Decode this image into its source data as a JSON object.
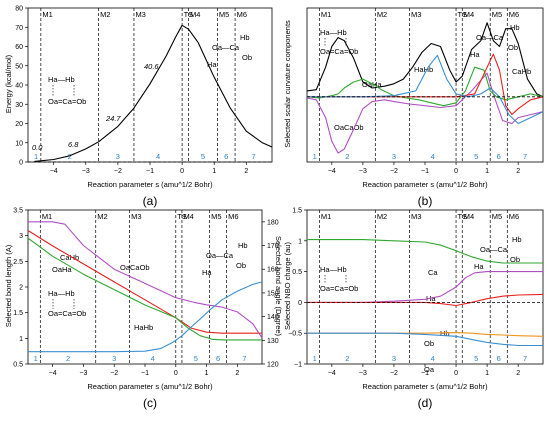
{
  "panels": [
    {
      "label": "(a)",
      "ylabel": "Energy (kcal/mol)",
      "xlabel": "Reaction parameter s (amu^1/2 Bohr)",
      "markers": [
        "M1",
        "M2",
        "M3",
        "TS",
        "M4",
        "M5",
        "M6"
      ],
      "marker_s": [
        -4.4,
        -2.6,
        -1.5,
        0.0,
        0.2,
        1.1,
        1.65
      ],
      "regions": [
        "1",
        "2",
        "3",
        "4",
        "5",
        "6",
        "7"
      ],
      "annotations": [
        "0.0",
        "6.8",
        "24.7",
        "40.6"
      ],
      "structure_left": {
        "top": "Ha—Hb",
        "bottom": "Oa=Ca=Ob"
      },
      "structure_right": {
        "hb": "Hb",
        "ha": "Ha",
        "chain": "Oa—Ca",
        "ob": "Ob"
      }
    },
    {
      "label": "(b)",
      "ylabel": "Selected scalar curvature components",
      "xlabel": "Reaction parameter s (amu^1/2 Bohr)",
      "markers": [
        "M1",
        "M2",
        "M3",
        "TS",
        "M4",
        "M5",
        "M6"
      ],
      "regions": [
        "1",
        "2",
        "3",
        "4",
        "5",
        "6",
        "7"
      ],
      "annotations": [
        "OaHa",
        "OaCaOb",
        "HaHb",
        "CaHb"
      ],
      "structure_left": {
        "top": "Ha—Hb",
        "bottom": "Oa=Ca=Ob"
      },
      "structure_right": {
        "hb": "Hb",
        "ha": "Ha",
        "chain": "Oa—Ca",
        "ob": "Ob"
      }
    },
    {
      "label": "(c)",
      "ylabel": "Selected bond length (A)",
      "ylabel2": "Selected bond angle (Degree)",
      "xlabel": "Reaction parameter s (amu^1/2 Bohr)",
      "markers": [
        "M1",
        "M2",
        "M3",
        "TS",
        "M4",
        "M5",
        "M6"
      ],
      "regions": [
        "1",
        "2",
        "3",
        "4",
        "5",
        "6",
        "7"
      ],
      "annotations": [
        "CaHb",
        "OaHa",
        "OaCaOb",
        "HaHb"
      ],
      "structure_left": {
        "top": "Ha—Hb",
        "bottom": "Oa=Ca=Ob"
      },
      "structure_right": {
        "hb": "Hb",
        "ha": "Ha",
        "chain": "Oa—Ca",
        "ob": "Ob"
      }
    },
    {
      "label": "(d)",
      "ylabel": "Selected NBO charge (au)",
      "xlabel": "Reaction parameter s (amu^1/2 Bohr)",
      "markers": [
        "M1",
        "M2",
        "M3",
        "TS",
        "M4",
        "M5",
        "M6"
      ],
      "regions": [
        "1",
        "2",
        "3",
        "4",
        "5",
        "6",
        "7"
      ],
      "annotations": [
        "Ca",
        "Ha",
        "Hb",
        "Ob",
        "Oa"
      ],
      "structure_left": {
        "top": "Ha—Hb",
        "bottom": "Oa=Ca=Ob"
      },
      "structure_right": {
        "hb": "Hb",
        "ha": "Ha",
        "chain": "Oa—Ca",
        "ob": "Ob"
      }
    }
  ],
  "colors": {
    "black": "#000000",
    "red": "#e8201e",
    "green": "#2ea82e",
    "purple": "#b04fc4",
    "blue": "#3a8fd2",
    "orange": "#f0941c",
    "region": "#2f83c4"
  },
  "chart_data": [
    {
      "type": "line",
      "xlim": [
        -4.8,
        2.8
      ],
      "ylim": [
        0,
        80
      ],
      "xticks": [
        -4,
        -3,
        -2,
        -1,
        0,
        1,
        2
      ],
      "yticks": [
        0,
        10,
        20,
        30,
        40,
        50,
        60,
        70,
        80
      ],
      "series": [
        {
          "color": "#000000",
          "x": [
            -4.6,
            -4.0,
            -3.5,
            -3.0,
            -2.6,
            -2.0,
            -1.5,
            -1.0,
            -0.5,
            -0.2,
            0.0,
            0.2,
            0.5,
            1.0,
            1.5,
            2.0,
            2.5,
            2.8
          ],
          "y": [
            0.3,
            1.3,
            3.2,
            6.8,
            10.5,
            18.5,
            28.0,
            40.6,
            55.0,
            65.0,
            71.0,
            69.0,
            62.0,
            44.0,
            28.0,
            16.0,
            10.0,
            7.8
          ]
        },
        {
          "color": "#000000",
          "dashed": true,
          "x": [
            -4.8,
            2.8
          ],
          "y": [
            0,
            0
          ]
        }
      ]
    },
    {
      "type": "line",
      "xlim": [
        -4.8,
        2.8
      ],
      "ylim": [
        -1.1,
        1.5
      ],
      "xticks": [
        -4,
        -3,
        -2,
        -1,
        0,
        1,
        2
      ],
      "series": [
        {
          "color": "#000000",
          "x": [
            -4.8,
            -4.5,
            -4.2,
            -4.0,
            -3.8,
            -3.6,
            -3.3,
            -3.0,
            -2.7,
            -2.3,
            -2.0,
            -1.7,
            -1.4,
            -1.1,
            -0.8,
            -0.5,
            -0.2,
            0.0,
            0.2,
            0.5,
            0.8,
            1.0,
            1.2,
            1.4,
            1.6,
            1.8,
            2.0,
            2.3,
            2.6,
            2.8
          ],
          "y": [
            0.1,
            0.12,
            0.5,
            0.85,
            1.0,
            0.95,
            0.65,
            0.25,
            0.15,
            0.18,
            0.22,
            0.3,
            0.5,
            0.75,
            0.9,
            0.85,
            0.45,
            0.25,
            0.35,
            0.8,
            0.95,
            1.25,
            0.95,
            0.85,
            1.15,
            1.15,
            0.9,
            0.3,
            0.05,
            0.0
          ]
        },
        {
          "color": "#b04fc4",
          "x": [
            -4.8,
            -4.5,
            -4.2,
            -4.0,
            -3.8,
            -3.6,
            -3.3,
            -3.0,
            -2.7,
            -2.3,
            -2.0,
            -1.5,
            -1.0,
            -0.5,
            0.0,
            0.5,
            1.0,
            1.2,
            1.5,
            1.8,
            2.0,
            2.4,
            2.8
          ],
          "y": [
            -0.02,
            -0.05,
            -0.35,
            -0.75,
            -0.95,
            -0.88,
            -0.55,
            -0.2,
            -0.08,
            -0.05,
            -0.08,
            -0.12,
            -0.15,
            -0.18,
            -0.15,
            0.1,
            0.4,
            0.05,
            -0.4,
            -0.45,
            -0.35,
            -0.3,
            -0.25
          ]
        },
        {
          "color": "#2ea82e",
          "x": [
            -4.8,
            -4.4,
            -4.0,
            -3.8,
            -3.6,
            -3.3,
            -3.0,
            -2.7,
            -2.4,
            -2.0,
            -1.6,
            -1.2,
            -0.8,
            -0.4,
            0.0,
            0.3,
            0.6,
            0.9,
            1.1,
            1.3,
            1.6,
            2.0,
            2.4,
            2.8
          ],
          "y": [
            0.0,
            -0.02,
            0.02,
            0.05,
            0.15,
            0.25,
            0.3,
            0.22,
            0.12,
            0.02,
            -0.02,
            -0.05,
            -0.1,
            -0.15,
            -0.1,
            0.1,
            0.5,
            0.45,
            0.1,
            0.0,
            -0.05,
            0.0,
            0.05,
            0.0
          ]
        },
        {
          "color": "#e8201e",
          "x": [
            -4.8,
            -3.0,
            -2.0,
            -1.0,
            0.0,
            0.6,
            1.0,
            1.2,
            1.4,
            1.6,
            1.8,
            2.0,
            2.4,
            2.8
          ],
          "y": [
            0.0,
            0.0,
            0.0,
            0.0,
            0.0,
            0.05,
            0.5,
            0.72,
            0.45,
            -0.15,
            -0.3,
            -0.2,
            -0.05,
            0.0
          ]
        },
        {
          "color": "#3a8fd2",
          "x": [
            -4.8,
            -3.0,
            -2.0,
            -1.3,
            -0.9,
            -0.6,
            -0.3,
            0.0,
            0.4,
            0.8,
            1.1,
            1.4,
            1.7,
            2.0,
            2.4,
            2.8
          ],
          "y": [
            0.0,
            0.0,
            0.02,
            0.1,
            0.5,
            0.7,
            0.3,
            0.05,
            0.0,
            0.05,
            0.15,
            0.0,
            -0.3,
            -0.45,
            -0.35,
            -0.25
          ]
        },
        {
          "color": "#000000",
          "dashed": true,
          "x": [
            -4.8,
            2.8
          ],
          "y": [
            0,
            0
          ]
        }
      ]
    },
    {
      "type": "line",
      "xlim": [
        -4.8,
        2.8
      ],
      "ylim": [
        0.5,
        3.5
      ],
      "y2lim": [
        120,
        185
      ],
      "xticks": [
        -4,
        -3,
        -2,
        -1,
        0,
        1,
        2
      ],
      "yticks": [
        0.5,
        1.0,
        1.5,
        2.0,
        2.5,
        3.0,
        3.5
      ],
      "y2ticks": [
        120,
        130,
        140,
        150,
        160,
        170,
        180
      ],
      "series": [
        {
          "color": "#e8201e",
          "axis": "left",
          "x": [
            -4.8,
            -4.0,
            -3.0,
            -2.0,
            -1.0,
            0.0,
            0.5,
            1.0,
            1.5,
            2.0,
            2.8
          ],
          "y": [
            3.1,
            2.8,
            2.45,
            2.1,
            1.75,
            1.4,
            1.2,
            1.12,
            1.1,
            1.1,
            1.1
          ]
        },
        {
          "color": "#2ea82e",
          "axis": "left",
          "x": [
            -4.8,
            -4.0,
            -3.0,
            -2.0,
            -1.0,
            0.0,
            0.4,
            0.8,
            1.2,
            1.6,
            2.0,
            2.8
          ],
          "y": [
            2.95,
            2.6,
            2.25,
            1.95,
            1.65,
            1.4,
            1.2,
            1.05,
            0.98,
            0.97,
            0.97,
            0.97
          ]
        },
        {
          "color": "#b04fc4",
          "axis": "right",
          "x": [
            -4.8,
            -4.0,
            -3.6,
            -3.0,
            -2.0,
            -1.0,
            0.0,
            0.6,
            1.0,
            1.5,
            2.0,
            2.5,
            2.8
          ],
          "y": [
            180,
            180,
            179,
            170,
            160,
            154,
            148,
            146,
            145,
            144,
            142,
            137,
            131
          ]
        },
        {
          "color": "#3a8fd2",
          "axis": "left",
          "x": [
            -4.8,
            -3.0,
            -2.0,
            -1.0,
            -0.5,
            -0.1,
            0.2,
            0.5,
            0.8,
            1.1,
            1.5,
            2.0,
            2.5,
            2.8
          ],
          "y": [
            0.74,
            0.74,
            0.74,
            0.75,
            0.8,
            0.92,
            1.05,
            1.22,
            1.38,
            1.55,
            1.75,
            1.92,
            2.05,
            2.1
          ]
        }
      ]
    },
    {
      "type": "line",
      "xlim": [
        -4.8,
        2.8
      ],
      "ylim": [
        -1.0,
        1.5
      ],
      "xticks": [
        -4,
        -3,
        -2,
        -1,
        0,
        1,
        2
      ],
      "yticks": [
        -1.0,
        -0.5,
        0.0,
        0.5,
        1.0,
        1.5
      ],
      "series": [
        {
          "color": "#2ea82e",
          "x": [
            -4.8,
            -3.0,
            -2.0,
            -1.0,
            -0.5,
            0.0,
            0.5,
            1.0,
            1.5,
            2.0,
            2.8
          ],
          "y": [
            1.02,
            1.02,
            1.0,
            0.98,
            0.93,
            0.84,
            0.74,
            0.67,
            0.64,
            0.64,
            0.64
          ]
        },
        {
          "color": "#b04fc4",
          "x": [
            -4.8,
            -3.0,
            -2.0,
            -1.0,
            -0.5,
            0.0,
            0.3,
            0.6,
            1.0,
            1.5,
            2.0,
            2.8
          ],
          "y": [
            0.0,
            0.0,
            0.02,
            0.05,
            0.1,
            0.25,
            0.4,
            0.48,
            0.5,
            0.5,
            0.5,
            0.5
          ]
        },
        {
          "color": "#e8201e",
          "x": [
            -4.8,
            -3.0,
            -2.0,
            -1.0,
            -0.5,
            0.0,
            0.5,
            1.0,
            1.5,
            2.0,
            2.8
          ],
          "y": [
            0.0,
            0.0,
            0.0,
            0.0,
            -0.02,
            -0.05,
            0.0,
            0.06,
            0.1,
            0.12,
            0.13
          ]
        },
        {
          "color": "#f0941c",
          "x": [
            -4.8,
            -3.0,
            -2.0,
            -1.0,
            0.0,
            0.5,
            1.0,
            1.5,
            2.0,
            2.8
          ],
          "y": [
            -0.5,
            -0.5,
            -0.5,
            -0.5,
            -0.49,
            -0.5,
            -0.52,
            -0.53,
            -0.54,
            -0.55
          ]
        },
        {
          "color": "#3a8fd2",
          "x": [
            -4.8,
            -3.0,
            -2.0,
            -1.0,
            0.0,
            0.5,
            1.0,
            1.5,
            2.0,
            2.8
          ],
          "y": [
            -0.5,
            -0.5,
            -0.5,
            -0.52,
            -0.55,
            -0.6,
            -0.65,
            -0.68,
            -0.7,
            -0.7
          ]
        },
        {
          "color": "#000000",
          "dashed": true,
          "x": [
            -4.8,
            2.8
          ],
          "y": [
            0,
            0
          ]
        }
      ]
    }
  ]
}
